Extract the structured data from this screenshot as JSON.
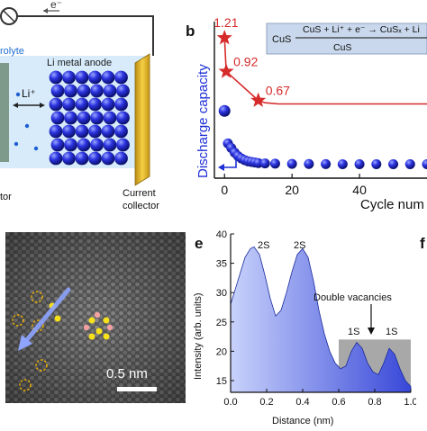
{
  "figure": {
    "panel_a": {
      "electron_label": "e⁻",
      "electrolyte_label": "rolyte",
      "anode_label": "Li metal anode",
      "li_ion_label": "Li⁺",
      "separator_label": "tor",
      "collector_label_line1": "Current",
      "collector_label_line2": "collector"
    },
    "panel_b": {
      "letter": "b",
      "equation_lhs": "CuS",
      "equation_top": "CuS + Li⁺ + e⁻ → CuSₓ + Li",
      "equation_bottom": "CuS",
      "colors": {
        "red": "#d62b2b",
        "blue": "#1d2fd6",
        "box": "#c9d8ec"
      }
    },
    "panel_d": {
      "scale_label": "0.5 nm"
    },
    "panel_e": {
      "letter": "e",
      "peak_labels": [
        "2S",
        "2S",
        "1S",
        "1S"
      ],
      "vacancy_label": "Double vacancies",
      "colors": {
        "fill": "#3848d8",
        "shade": "#a8a8a8"
      }
    },
    "panel_f": {
      "letter": "f"
    }
  },
  "chart_data": [
    {
      "type": "scatter",
      "xlabel": "Cycle num",
      "ylabel": "Discharge capacity",
      "xlim": [
        -3,
        60
      ],
      "xticks": [
        0,
        20,
        40
      ],
      "series": [
        {
          "values_x": [
            0,
            0.5,
            10,
            12,
            16,
            20,
            30,
            40,
            50,
            60
          ],
          "values_y": [
            1.21,
            0.92,
            0.67,
            0.65,
            0.64,
            0.64,
            0.64,
            0.64,
            0.64,
            0.64
          ],
          "labels": [
            "1.21",
            "0.92",
            "0.67"
          ]
        },
        {
          "values_x": [
            0,
            1,
            2,
            3,
            4,
            5,
            6,
            7,
            8,
            9,
            10,
            12,
            15,
            20,
            25,
            30,
            35,
            40,
            45,
            50,
            55,
            60
          ],
          "values_y": [
            0.58,
            0.3,
            0.26,
            0.22,
            0.19,
            0.17,
            0.155,
            0.145,
            0.14,
            0.135,
            0.13,
            0.127,
            0.125,
            0.123,
            0.122,
            0.121,
            0.12,
            0.12,
            0.12,
            0.12,
            0.12,
            0.12
          ]
        }
      ]
    },
    {
      "type": "area",
      "xlabel": "Distance (nm)",
      "ylabel": "Intensity (arb. units)",
      "xlim": [
        0,
        1.0
      ],
      "ylim": [
        13,
        40
      ],
      "xticks": [
        "0.0",
        "0.2",
        "0.4",
        "0.6",
        "0.8",
        "1.0"
      ],
      "yticks": [
        "15",
        "20",
        "25",
        "30",
        "35",
        "40"
      ],
      "x": [
        0,
        0.02,
        0.05,
        0.08,
        0.11,
        0.13,
        0.16,
        0.19,
        0.22,
        0.25,
        0.28,
        0.31,
        0.34,
        0.37,
        0.4,
        0.43,
        0.46,
        0.49,
        0.52,
        0.55,
        0.58,
        0.61,
        0.64,
        0.67,
        0.7,
        0.73,
        0.76,
        0.79,
        0.82,
        0.85,
        0.88,
        0.91,
        0.94,
        0.97,
        1.0
      ],
      "y": [
        28,
        30,
        33,
        36,
        37.5,
        37.8,
        36.5,
        33,
        29,
        26,
        27,
        30,
        33.5,
        36.5,
        37.5,
        36,
        32,
        27,
        23,
        20,
        18,
        17,
        17.5,
        20,
        21.5,
        20.5,
        18,
        16.5,
        16,
        18,
        20.5,
        19.5,
        17,
        15,
        14
      ],
      "shaded_region": [
        0.6,
        1.0
      ],
      "shaded_level": 22
    }
  ]
}
